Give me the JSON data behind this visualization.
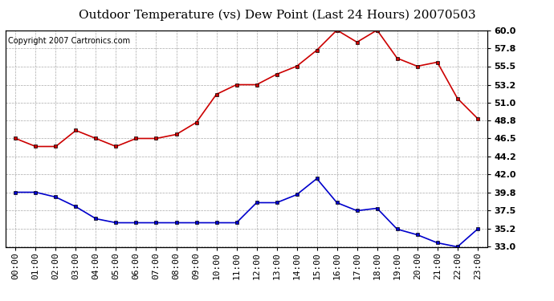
{
  "title": "Outdoor Temperature (vs) Dew Point (Last 24 Hours) 20070503",
  "copyright": "Copyright 2007 Cartronics.com",
  "x_labels": [
    "00:00",
    "01:00",
    "02:00",
    "03:00",
    "04:00",
    "05:00",
    "06:00",
    "07:00",
    "08:00",
    "09:00",
    "10:00",
    "11:00",
    "12:00",
    "13:00",
    "14:00",
    "15:00",
    "16:00",
    "17:00",
    "18:00",
    "19:00",
    "20:00",
    "21:00",
    "22:00",
    "23:00"
  ],
  "temp_data": [
    46.5,
    45.5,
    45.5,
    47.5,
    46.5,
    45.5,
    46.5,
    46.5,
    47.0,
    48.5,
    52.0,
    53.2,
    53.2,
    54.5,
    55.5,
    57.5,
    60.0,
    58.5,
    60.0,
    56.5,
    55.5,
    56.0,
    51.5,
    49.0
  ],
  "dew_data": [
    39.8,
    39.8,
    39.2,
    38.0,
    36.5,
    36.0,
    36.0,
    36.0,
    36.0,
    36.0,
    36.0,
    36.0,
    38.5,
    38.5,
    39.5,
    41.5,
    38.5,
    37.5,
    37.8,
    35.2,
    34.5,
    33.5,
    33.0,
    35.2
  ],
  "temp_color": "#cc0000",
  "dew_color": "#0000cc",
  "grid_color": "#aaaaaa",
  "bg_color": "#ffffff",
  "plot_bg_color": "#ffffff",
  "ylim": [
    33.0,
    60.0
  ],
  "yticks": [
    33.0,
    35.2,
    37.5,
    39.8,
    42.0,
    44.2,
    46.5,
    48.8,
    51.0,
    53.2,
    55.5,
    57.8,
    60.0
  ],
  "title_fontsize": 11,
  "copyright_fontsize": 7,
  "tick_fontsize": 8,
  "marker": "s",
  "marker_size": 3,
  "line_width": 1.2
}
